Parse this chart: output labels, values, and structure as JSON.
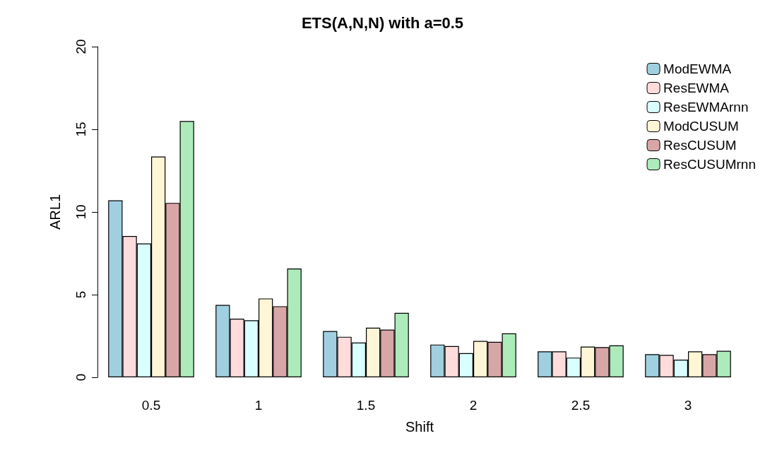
{
  "chart_data": {
    "type": "bar",
    "title": "ETS(A,N,N) with a=0.5",
    "xlabel": "Shift",
    "ylabel": "ARL1",
    "categories": [
      "0.5",
      "1",
      "1.5",
      "2",
      "2.5",
      "3"
    ],
    "series": [
      {
        "name": "ModEWMA",
        "color": "#a0d0e0",
        "values": [
          10.7,
          4.38,
          2.8,
          1.98,
          1.57,
          1.4
        ]
      },
      {
        "name": "ResEWMA",
        "color": "#ffdcdc",
        "values": [
          8.55,
          3.55,
          2.45,
          1.89,
          1.57,
          1.36
        ]
      },
      {
        "name": "ResEWMArnn",
        "color": "#d9ffff",
        "values": [
          8.1,
          3.45,
          2.1,
          1.46,
          1.19,
          1.07
        ]
      },
      {
        "name": "ModCUSUM",
        "color": "#fff6d6",
        "values": [
          13.35,
          4.77,
          3.0,
          2.2,
          1.86,
          1.57
        ]
      },
      {
        "name": "ResCUSUM",
        "color": "#d9a6a8",
        "values": [
          10.55,
          4.3,
          2.88,
          2.15,
          1.83,
          1.4
        ]
      },
      {
        "name": "ResCUSUMrnn",
        "color": "#aeebbb",
        "values": [
          15.5,
          6.58,
          3.9,
          2.66,
          1.93,
          1.6
        ]
      }
    ],
    "ylim": [
      0,
      20
    ],
    "yticks": [
      0,
      5,
      10,
      15,
      20
    ],
    "grid": false,
    "legend": "top right"
  }
}
